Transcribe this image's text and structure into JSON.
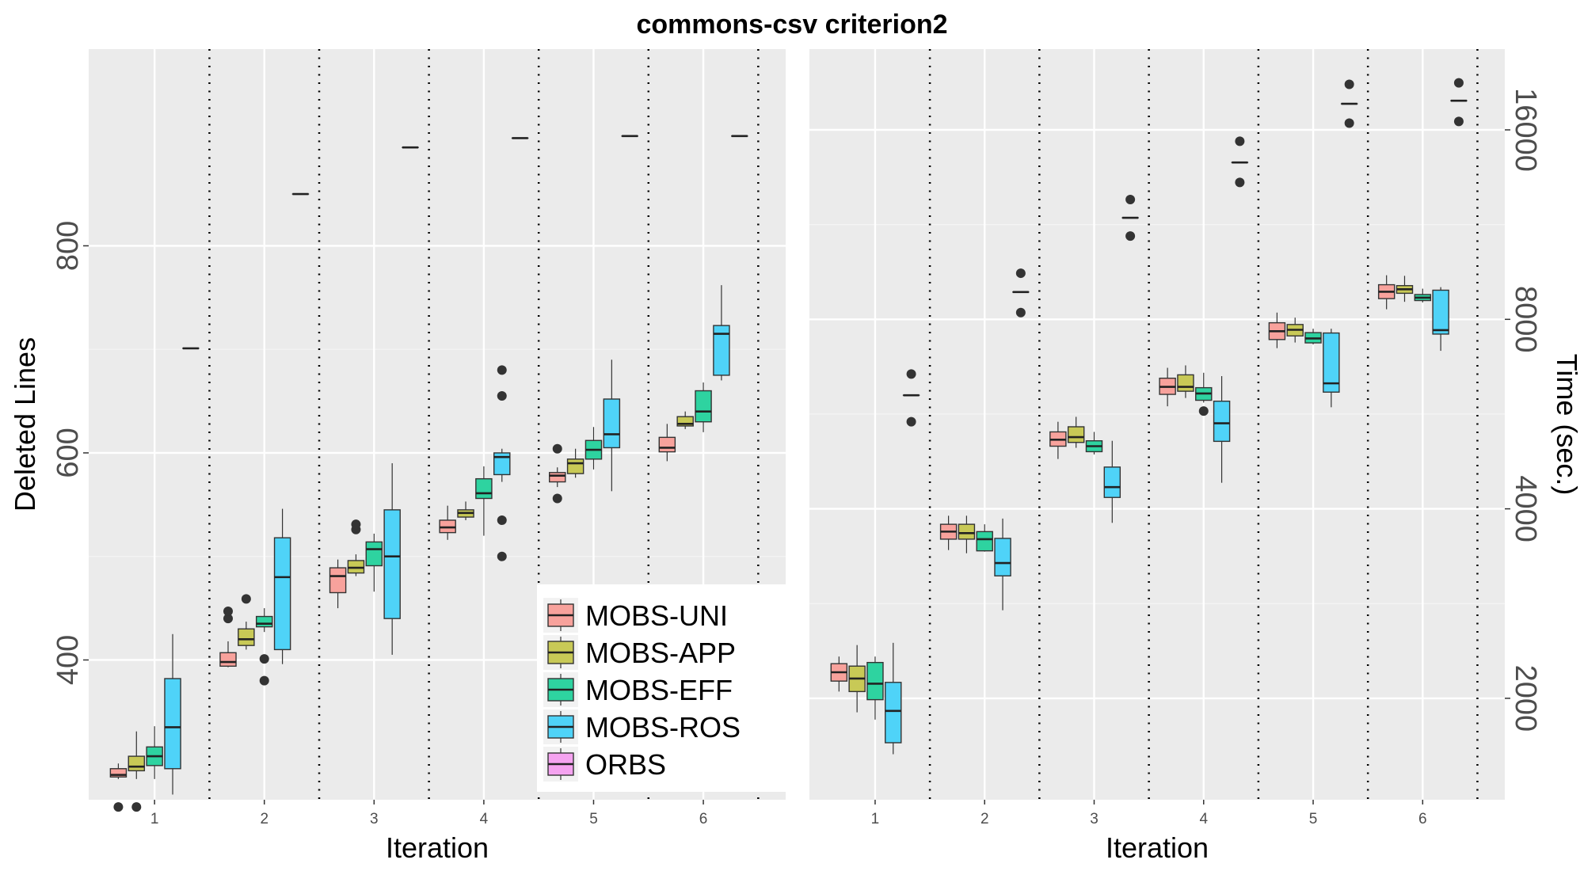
{
  "title": "commons-csv criterion2",
  "legend": {
    "entries": [
      {
        "label": "MOBS-UNI",
        "color": "#F8A29C"
      },
      {
        "label": "MOBS-APP",
        "color": "#C8C956"
      },
      {
        "label": "MOBS-EFF",
        "color": "#2ED3A0"
      },
      {
        "label": "MOBS-ROS",
        "color": "#4FD3F8"
      },
      {
        "label": "ORBS",
        "color": "#F5A3F0"
      }
    ]
  },
  "chart_data": [
    {
      "type": "boxplot",
      "xlabel": "Iteration",
      "ylabel": "Deleted Lines",
      "categories": [
        "1",
        "2",
        "3",
        "4",
        "5",
        "6"
      ],
      "ylim": [
        265,
        990
      ],
      "yticks": [
        400,
        600,
        800
      ],
      "grid": true,
      "legend_position": "bottom-right",
      "series": [
        {
          "name": "MOBS-UNI",
          "boxes": [
            {
              "min": 285,
              "q1": 287,
              "median": 289,
              "q3": 295,
              "max": 300,
              "outliers": [
                258
              ]
            },
            {
              "min": 393,
              "q1": 394,
              "median": 398,
              "q3": 407,
              "max": 418,
              "outliers": [
                440,
                447
              ]
            },
            {
              "min": 450,
              "q1": 465,
              "median": 481,
              "q3": 489,
              "max": 497,
              "outliers": []
            },
            {
              "min": 516,
              "q1": 523,
              "median": 528,
              "q3": 535,
              "max": 549,
              "outliers": []
            },
            {
              "min": 567,
              "q1": 572,
              "median": 578,
              "q3": 581,
              "max": 586,
              "outliers": [
                556,
                604
              ]
            },
            {
              "min": 592,
              "q1": 601,
              "median": 605,
              "q3": 615,
              "max": 628,
              "outliers": []
            }
          ]
        },
        {
          "name": "MOBS-APP",
          "boxes": [
            {
              "min": 285,
              "q1": 293,
              "median": 297,
              "q3": 307,
              "max": 331,
              "outliers": [
                258
              ]
            },
            {
              "min": 410,
              "q1": 414,
              "median": 420,
              "q3": 430,
              "max": 437,
              "outliers": [
                459
              ]
            },
            {
              "min": 481,
              "q1": 484,
              "median": 489,
              "q3": 496,
              "max": 502,
              "outliers": [
                526,
                531
              ]
            },
            {
              "min": 535,
              "q1": 538,
              "median": 542,
              "q3": 545,
              "max": 553,
              "outliers": []
            },
            {
              "min": 576,
              "q1": 580,
              "median": 590,
              "q3": 594,
              "max": 604,
              "outliers": []
            },
            {
              "min": 623,
              "q1": 626,
              "median": 628,
              "q3": 635,
              "max": 640,
              "outliers": []
            }
          ]
        },
        {
          "name": "MOBS-EFF",
          "boxes": [
            {
              "min": 285,
              "q1": 298,
              "median": 307,
              "q3": 316,
              "max": 336,
              "outliers": []
            },
            {
              "min": 427,
              "q1": 432,
              "median": 435,
              "q3": 442,
              "max": 450,
              "outliers": [
                401,
                380
              ]
            },
            {
              "min": 466,
              "q1": 491,
              "median": 507,
              "q3": 514,
              "max": 522,
              "outliers": []
            },
            {
              "min": 520,
              "q1": 556,
              "median": 561,
              "q3": 575,
              "max": 587,
              "outliers": []
            },
            {
              "min": 584,
              "q1": 594,
              "median": 603,
              "q3": 612,
              "max": 625,
              "outliers": []
            },
            {
              "min": 620,
              "q1": 630,
              "median": 640,
              "q3": 660,
              "max": 668,
              "outliers": []
            }
          ]
        },
        {
          "name": "MOBS-ROS",
          "boxes": [
            {
              "min": 270,
              "q1": 295,
              "median": 335,
              "q3": 382,
              "max": 425,
              "outliers": []
            },
            {
              "min": 396,
              "q1": 410,
              "median": 480,
              "q3": 518,
              "max": 546,
              "outliers": []
            },
            {
              "min": 405,
              "q1": 440,
              "median": 500,
              "q3": 545,
              "max": 590,
              "outliers": []
            },
            {
              "min": 572,
              "q1": 579,
              "median": 596,
              "q3": 600,
              "max": 604,
              "outliers": [
                680,
                655,
                535,
                500
              ]
            },
            {
              "min": 563,
              "q1": 605,
              "median": 618,
              "q3": 652,
              "max": 690,
              "outliers": []
            },
            {
              "min": 670,
              "q1": 675,
              "median": 715,
              "q3": 723,
              "max": 762,
              "outliers": []
            }
          ]
        },
        {
          "name": "ORBS",
          "boxes": [
            {
              "min": 701,
              "q1": 701,
              "median": 701,
              "q3": 701,
              "max": 701,
              "outliers": []
            },
            {
              "min": 850,
              "q1": 850,
              "median": 850,
              "q3": 850,
              "max": 850,
              "outliers": []
            },
            {
              "min": 895,
              "q1": 895,
              "median": 895,
              "q3": 895,
              "max": 895,
              "outliers": []
            },
            {
              "min": 904,
              "q1": 904,
              "median": 904,
              "q3": 904,
              "max": 904,
              "outliers": []
            },
            {
              "min": 906,
              "q1": 906,
              "median": 906,
              "q3": 906,
              "max": 906,
              "outliers": []
            },
            {
              "min": 906,
              "q1": 906,
              "median": 906,
              "q3": 906,
              "max": 906,
              "outliers": []
            }
          ]
        }
      ]
    },
    {
      "type": "boxplot",
      "xlabel": "Iteration",
      "ylabel": "Time (sec.)",
      "y_scale": "log2",
      "categories": [
        "1",
        "2",
        "3",
        "4",
        "5",
        "6"
      ],
      "ylim": [
        1380,
        21500
      ],
      "yticks": [
        2000,
        4000,
        8000,
        16000
      ],
      "grid": true,
      "y_axis_side": "right",
      "series": [
        {
          "name": "MOBS-UNI",
          "boxes": [
            {
              "min": 2050,
              "q1": 2130,
              "median": 2200,
              "q3": 2270,
              "max": 2330,
              "outliers": []
            },
            {
              "min": 3440,
              "q1": 3580,
              "median": 3680,
              "q3": 3780,
              "max": 3900,
              "outliers": []
            },
            {
              "min": 4800,
              "q1": 5030,
              "median": 5150,
              "q3": 5300,
              "max": 5500,
              "outliers": []
            },
            {
              "min": 5820,
              "q1": 6080,
              "median": 6250,
              "q3": 6450,
              "max": 6700,
              "outliers": []
            },
            {
              "min": 7200,
              "q1": 7430,
              "median": 7660,
              "q3": 7900,
              "max": 8200,
              "outliers": []
            },
            {
              "min": 8300,
              "q1": 8630,
              "median": 8850,
              "q3": 9080,
              "max": 9400,
              "outliers": []
            }
          ]
        },
        {
          "name": "MOBS-APP",
          "boxes": [
            {
              "min": 1900,
              "q1": 2050,
              "median": 2150,
              "q3": 2250,
              "max": 2430,
              "outliers": []
            },
            {
              "min": 3400,
              "q1": 3580,
              "median": 3660,
              "q3": 3780,
              "max": 3900,
              "outliers": []
            },
            {
              "min": 5000,
              "q1": 5100,
              "median": 5200,
              "q3": 5400,
              "max": 5600,
              "outliers": []
            },
            {
              "min": 6000,
              "q1": 6150,
              "median": 6250,
              "q3": 6530,
              "max": 6760,
              "outliers": []
            },
            {
              "min": 7350,
              "q1": 7530,
              "median": 7700,
              "q3": 7850,
              "max": 8050,
              "outliers": []
            },
            {
              "min": 8530,
              "q1": 8800,
              "median": 8930,
              "q3": 9050,
              "max": 9380,
              "outliers": []
            }
          ]
        },
        {
          "name": "MOBS-EFF",
          "boxes": [
            {
              "min": 1850,
              "q1": 1990,
              "median": 2110,
              "q3": 2280,
              "max": 2330,
              "outliers": []
            },
            {
              "min": 3420,
              "q1": 3430,
              "median": 3580,
              "q3": 3680,
              "max": 3780,
              "outliers": []
            },
            {
              "min": 4880,
              "q1": 4930,
              "median": 5030,
              "q3": 5130,
              "max": 5300,
              "outliers": []
            },
            {
              "min": 5900,
              "q1": 5950,
              "median": 6100,
              "q3": 6230,
              "max": 6580,
              "outliers": [
                5720
              ]
            },
            {
              "min": 7300,
              "q1": 7340,
              "median": 7460,
              "q3": 7620,
              "max": 7730,
              "outliers": []
            },
            {
              "min": 8510,
              "q1": 8570,
              "median": 8660,
              "q3": 8760,
              "max": 8950,
              "outliers": []
            }
          ]
        },
        {
          "name": "MOBS-ROS",
          "boxes": [
            {
              "min": 1630,
              "q1": 1700,
              "median": 1910,
              "q3": 2120,
              "max": 2450,
              "outliers": []
            },
            {
              "min": 2760,
              "q1": 3130,
              "median": 3280,
              "q3": 3590,
              "max": 3860,
              "outliers": []
            },
            {
              "min": 3800,
              "q1": 4170,
              "median": 4330,
              "q3": 4660,
              "max": 5130,
              "outliers": []
            },
            {
              "min": 4400,
              "q1": 5120,
              "median": 5470,
              "q3": 5930,
              "max": 6500,
              "outliers": []
            },
            {
              "min": 5800,
              "q1": 6130,
              "median": 6330,
              "q3": 7610,
              "max": 7730,
              "outliers": []
            },
            {
              "min": 7130,
              "q1": 7580,
              "median": 7690,
              "q3": 8900,
              "max": 9000,
              "outliers": []
            }
          ]
        },
        {
          "name": "ORBS",
          "boxes": [
            {
              "min": 6060,
              "q1": 6060,
              "median": 6060,
              "q3": 6060,
              "max": 6060,
              "outliers": [
                6550,
                5500
              ]
            },
            {
              "min": 8840,
              "q1": 8840,
              "median": 8840,
              "q3": 8840,
              "max": 8840,
              "outliers": [
                9470,
                8200
              ]
            },
            {
              "min": 11600,
              "q1": 11600,
              "median": 11600,
              "q3": 11600,
              "max": 11600,
              "outliers": [
                12400,
                10850
              ]
            },
            {
              "min": 14200,
              "q1": 14200,
              "median": 14200,
              "q3": 14200,
              "max": 14200,
              "outliers": [
                15350,
                13200
              ]
            },
            {
              "min": 17600,
              "q1": 17600,
              "median": 17600,
              "q3": 17600,
              "max": 17600,
              "outliers": [
                18900,
                16400
              ]
            },
            {
              "min": 17800,
              "q1": 17800,
              "median": 17800,
              "q3": 17800,
              "max": 17800,
              "outliers": [
                19000,
                16500
              ]
            }
          ]
        }
      ]
    }
  ]
}
